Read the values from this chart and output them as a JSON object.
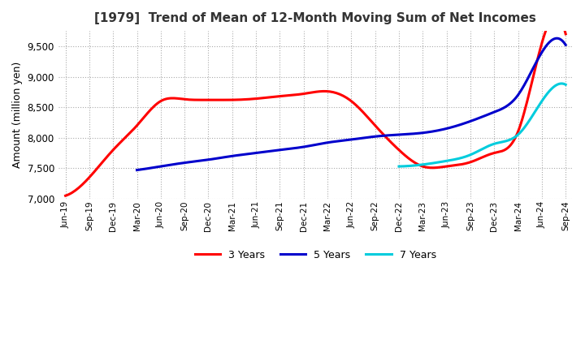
{
  "title": "[1979]  Trend of Mean of 12-Month Moving Sum of Net Incomes",
  "ylabel": "Amount (million yen)",
  "ylim": [
    7000,
    9750
  ],
  "yticks": [
    7000,
    7500,
    8000,
    8500,
    9000,
    9500
  ],
  "background_color": "#ffffff",
  "grid_color": "#aaaaaa",
  "line_colors": {
    "3 Years": "#ff0000",
    "5 Years": "#0000cc",
    "7 Years": "#00ccdd",
    "10 Years": "#007700"
  },
  "x_labels": [
    "Jun-19",
    "Sep-19",
    "Dec-19",
    "Mar-20",
    "Jun-20",
    "Sep-20",
    "Dec-20",
    "Mar-21",
    "Jun-21",
    "Sep-21",
    "Dec-21",
    "Mar-22",
    "Jun-22",
    "Sep-22",
    "Dec-22",
    "Mar-23",
    "Jun-23",
    "Sep-23",
    "Dec-23",
    "Mar-24",
    "Jun-24",
    "Sep-24"
  ],
  "series": {
    "3 Years": [
      7050,
      7350,
      7800,
      8200,
      8600,
      8630,
      8620,
      8620,
      8640,
      8680,
      8720,
      8760,
      8600,
      8200,
      7800,
      7530,
      7530,
      7600,
      7750,
      8100,
      9550,
      9700
    ],
    "5 Years": [
      null,
      null,
      null,
      7470,
      7530,
      7590,
      7640,
      7700,
      7750,
      7800,
      7850,
      7920,
      7970,
      8020,
      8050,
      8080,
      8150,
      8270,
      8420,
      8700,
      9400,
      9520
    ],
    "7 Years": [
      null,
      null,
      null,
      null,
      null,
      null,
      null,
      null,
      null,
      null,
      null,
      null,
      null,
      null,
      7530,
      7560,
      7620,
      7720,
      7900,
      8050,
      8600,
      8870
    ],
    "10 Years": [
      null,
      null,
      null,
      null,
      null,
      null,
      null,
      null,
      null,
      null,
      null,
      null,
      null,
      null,
      null,
      null,
      null,
      null,
      null,
      null,
      null,
      null
    ]
  }
}
